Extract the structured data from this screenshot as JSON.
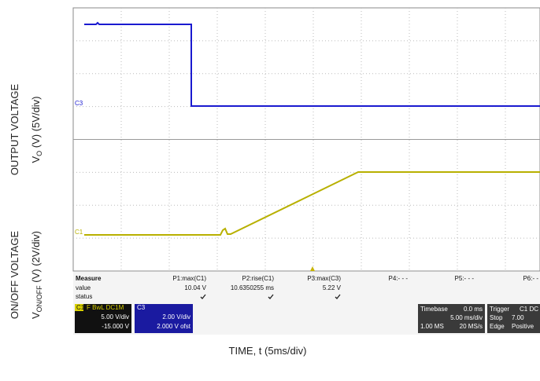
{
  "axis_labels": {
    "top": {
      "title": "OUTPUT VOLTAGE",
      "symbol": "V",
      "sub": "O",
      "unit": " (V) (5V/div)"
    },
    "bottom": {
      "title": "ON/OFF VOLTAGE",
      "symbol": "V",
      "sub": "ON/OFF",
      "unit": " (V) (2V/div)"
    },
    "x": "TIME, t (5ms/div)"
  },
  "traces": {
    "c3": "C3",
    "c1": "C1"
  },
  "measure": {
    "title": "Measure",
    "rows": [
      "value",
      "status"
    ],
    "columns": [
      {
        "name": "P1:max(C1)",
        "value": "10.04 V"
      },
      {
        "name": "P2:rise(C1)",
        "value": "10.6350255 ms"
      },
      {
        "name": "P3:max(C3)",
        "value": "5.22 V"
      },
      {
        "name": "P4:- - -"
      },
      {
        "name": "P5:- - -"
      },
      {
        "name": "P6:- -"
      }
    ]
  },
  "channels": [
    {
      "id": "C1",
      "header": "F BwL DC1M",
      "scale": "5.00 V/div",
      "offset": "-15.000 V"
    },
    {
      "id": "C3",
      "scale": "2.00 V/div",
      "offset": "2.000 V ofst"
    }
  ],
  "timebase": {
    "title": "Timebase",
    "delay": "0.0 ms",
    "scale": "5.00 ms/div",
    "points": "1.00 MS",
    "rate": "20 MS/s"
  },
  "trigger": {
    "title": "Trigger",
    "channel": "C1 DC",
    "level": "7.00",
    "mode": "Stop",
    "type": "Edge",
    "slope": "Positive"
  }
}
